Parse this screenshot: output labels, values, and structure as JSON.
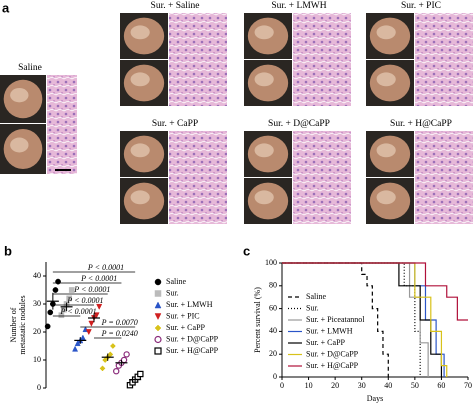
{
  "panel_a": {
    "label": "a",
    "groups": [
      {
        "label": "Saline"
      },
      {
        "label": "Sur. + Saline"
      },
      {
        "label": "Sur. + LMWH"
      },
      {
        "label": "Sur. + PIC"
      },
      {
        "label": "Sur. + CaPP"
      },
      {
        "label": "Sur. + D@CaPP"
      },
      {
        "label": "Sur. + H@CaPP"
      }
    ]
  },
  "chart_data": [
    {
      "type": "dot",
      "panel_label": "b",
      "ylabel": [
        "Number of",
        "metastatic nodules"
      ],
      "ylim": [
        0,
        45
      ],
      "yticks": [
        0,
        10,
        20,
        30,
        40
      ],
      "series": [
        {
          "name": "Saline",
          "color": "#000000",
          "marker": "circle",
          "values": [
            22,
            27,
            30,
            35,
            38
          ],
          "mean": 31,
          "sem": 3
        },
        {
          "name": "Sur.",
          "color": "#bbbbbb",
          "marker": "square",
          "values": [
            26,
            28,
            30,
            32,
            35
          ],
          "mean": 29,
          "sem": 1.5
        },
        {
          "name": "Sur. + LMWH",
          "color": "#2a55c8",
          "marker": "triangle",
          "values": [
            14,
            16,
            17,
            18,
            21
          ],
          "mean": 17,
          "sem": 1.2
        },
        {
          "name": "Sur. + PIC",
          "color": "#d02020",
          "marker": "triangle-down",
          "values": [
            20,
            23,
            25,
            26,
            29
          ],
          "mean": 25,
          "sem": 1.5
        },
        {
          "name": "Sur. + CaPP",
          "color": "#d8c21a",
          "marker": "diamond",
          "values": [
            7,
            10,
            11,
            12,
            15
          ],
          "mean": 11,
          "sem": 1.3
        },
        {
          "name": "Sur. + D@CaPP",
          "color": "#8a2a7a",
          "marker": "circle-open",
          "values": [
            6,
            8,
            9,
            10,
            12
          ],
          "mean": 9,
          "sem": 1
        },
        {
          "name": "Sur. + H@CaPP",
          "color": "#000000",
          "marker": "square-open",
          "values": [
            1,
            2,
            3,
            4,
            5
          ],
          "mean": 3,
          "sem": 0.7
        }
      ],
      "annotations": [
        "P < 0.0001",
        "P < 0.0001",
        "P < 0.0001",
        "P < 0.0001",
        "P < 0.0001",
        "P = 0.0070",
        "P = 0.0240"
      ]
    },
    {
      "type": "survival",
      "panel_label": "c",
      "ylabel": "Percent survival (%)",
      "xlabel": "Days",
      "xlim": [
        0,
        70
      ],
      "xticks": [
        0,
        10,
        20,
        30,
        40,
        50,
        60,
        70
      ],
      "ylim": [
        0,
        100
      ],
      "yticks": [
        0,
        20,
        40,
        60,
        80,
        100
      ],
      "series": [
        {
          "name": "Saline",
          "color": "#000000",
          "dash": "4,3",
          "x": [
            0,
            30,
            30,
            32,
            32,
            34,
            34,
            36,
            36,
            38,
            38,
            40,
            40
          ],
          "values": [
            100,
            100,
            90,
            90,
            80,
            80,
            60,
            60,
            40,
            40,
            20,
            20,
            0
          ]
        },
        {
          "name": "Sur.",
          "color": "#000000",
          "dash": "1,2",
          "x": [
            0,
            46,
            46,
            50,
            50,
            52,
            52
          ],
          "values": [
            100,
            100,
            80,
            80,
            40,
            40,
            0
          ]
        },
        {
          "name": "Sur. + Piceatannol",
          "color": "#999999",
          "dash": "",
          "x": [
            0,
            48,
            48,
            52,
            52,
            55,
            55
          ],
          "values": [
            100,
            100,
            70,
            70,
            30,
            30,
            0
          ]
        },
        {
          "name": "Sur. + LMWH",
          "color": "#2a55c8",
          "dash": "",
          "x": [
            0,
            50,
            50,
            54,
            54,
            58,
            58,
            61,
            61
          ],
          "values": [
            100,
            100,
            80,
            80,
            50,
            50,
            20,
            20,
            0
          ]
        },
        {
          "name": "Sur. + CaPP",
          "color": "#000000",
          "dash": "",
          "x": [
            0,
            44,
            44,
            52,
            52,
            56,
            56,
            60,
            60
          ],
          "values": [
            100,
            100,
            80,
            80,
            50,
            50,
            20,
            20,
            0
          ]
        },
        {
          "name": "Sur. + D@CaPP",
          "color": "#d8c21a",
          "dash": "",
          "x": [
            0,
            50,
            50,
            56,
            56,
            60,
            60,
            62,
            62
          ],
          "values": [
            100,
            100,
            70,
            70,
            40,
            40,
            10,
            10,
            0
          ]
        },
        {
          "name": "Sur. + H@CaPP",
          "color": "#b0103a",
          "dash": "",
          "x": [
            0,
            54,
            54,
            62,
            62,
            66,
            66,
            70
          ],
          "values": [
            100,
            100,
            80,
            80,
            70,
            70,
            50,
            50
          ]
        }
      ]
    }
  ]
}
